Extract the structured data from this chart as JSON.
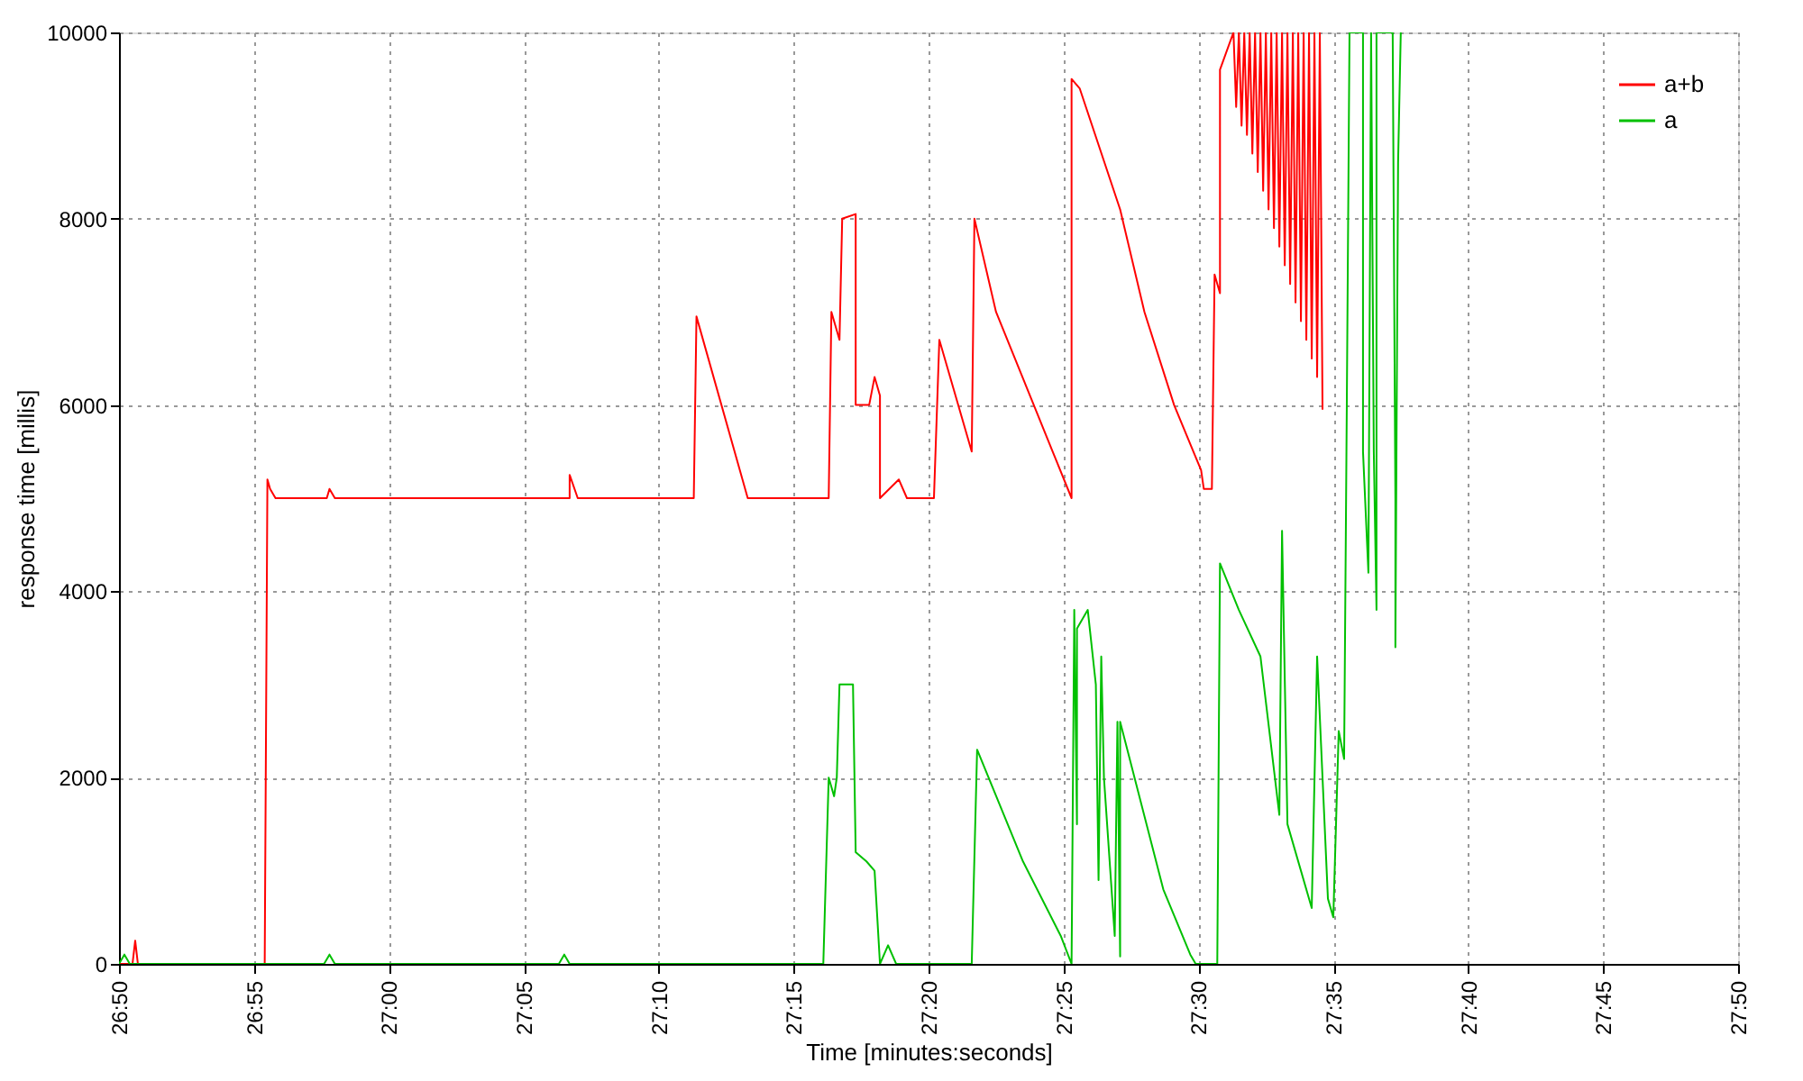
{
  "chart_data": {
    "type": "line",
    "xlabel": "Time [minutes:seconds]",
    "ylabel": "response time [millis]",
    "xlim": [
      1610,
      1670
    ],
    "ylim": [
      0,
      10000
    ],
    "xticks": [
      {
        "value": 1610,
        "label": "26:50"
      },
      {
        "value": 1615,
        "label": "26:55"
      },
      {
        "value": 1620,
        "label": "27:00"
      },
      {
        "value": 1625,
        "label": "27:05"
      },
      {
        "value": 1630,
        "label": "27:10"
      },
      {
        "value": 1635,
        "label": "27:15"
      },
      {
        "value": 1640,
        "label": "27:20"
      },
      {
        "value": 1645,
        "label": "27:25"
      },
      {
        "value": 1650,
        "label": "27:30"
      },
      {
        "value": 1655,
        "label": "27:35"
      },
      {
        "value": 1660,
        "label": "27:40"
      },
      {
        "value": 1665,
        "label": "27:45"
      },
      {
        "value": 1670,
        "label": "27:50"
      }
    ],
    "yticks": [
      0,
      2000,
      4000,
      6000,
      8000,
      10000
    ],
    "grid": true,
    "legend": "top right",
    "marker": "none",
    "line_style": "solid",
    "series": [
      {
        "name": "a+b",
        "color": "#ff0000",
        "x": [
          1610,
          1610.5,
          1610.6,
          1610.7,
          1615.4,
          1615.5,
          1615.6,
          1615.8,
          1617.7,
          1617.8,
          1618,
          1626.7,
          1626.7,
          1627,
          1631.3,
          1631.4,
          1633.3,
          1636.3,
          1636.4,
          1636.7,
          1636.8,
          1637.3,
          1637.3,
          1637.8,
          1638,
          1638.2,
          1638.2,
          1638.9,
          1639.2,
          1640.2,
          1640.4,
          1641.6,
          1641.7,
          1642.5,
          1644.6,
          1645.3,
          1645.3,
          1645.6,
          1647.1,
          1648,
          1649.1,
          1650.1,
          1650.2,
          1650.5,
          1650.6,
          1650.8,
          1650.8,
          1651.3,
          1651.4,
          1651.5,
          1651.6,
          1651.7,
          1651.8,
          1651.9,
          1652,
          1652.1,
          1652.2,
          1652.3,
          1652.4,
          1652.5,
          1652.6,
          1652.7,
          1652.8,
          1652.9,
          1653,
          1653.1,
          1653.2,
          1653.3,
          1653.4,
          1653.5,
          1653.6,
          1653.7,
          1653.8,
          1653.9,
          1654,
          1654.1,
          1654.2,
          1654.3,
          1654.4,
          1654.5,
          1654.6
        ],
        "values": [
          0,
          0,
          250,
          0,
          0,
          5200,
          5100,
          5000,
          5000,
          5100,
          5000,
          5000,
          5250,
          5000,
          5000,
          6950,
          5000,
          5000,
          7000,
          6700,
          8000,
          8050,
          6000,
          6000,
          6300,
          6100,
          5000,
          5200,
          5000,
          5000,
          6700,
          5500,
          8000,
          7000,
          5500,
          5000,
          9500,
          9400,
          8100,
          7000,
          6000,
          5300,
          5100,
          5100,
          7400,
          7200,
          9600,
          10000,
          9200,
          10000,
          9000,
          10000,
          8900,
          10000,
          8700,
          10000,
          8500,
          10000,
          8300,
          10000,
          8100,
          10000,
          7900,
          10000,
          7700,
          10000,
          7500,
          10000,
          7300,
          10000,
          7100,
          10000,
          6900,
          10000,
          6700,
          10000,
          6500,
          10000,
          6300,
          10000,
          5950
        ]
      },
      {
        "name": "a",
        "color": "#00c000",
        "x": [
          1610,
          1610.2,
          1610.4,
          1615,
          1617.6,
          1617.8,
          1618,
          1626.3,
          1626.5,
          1626.7,
          1636.1,
          1636.3,
          1636.5,
          1636.6,
          1636.7,
          1637.2,
          1637.3,
          1637.7,
          1638,
          1638.2,
          1638.5,
          1638.8,
          1641.6,
          1641.8,
          1643.5,
          1644.9,
          1645.3,
          1645.4,
          1645.5,
          1645.5,
          1645.9,
          1646.2,
          1646.3,
          1646.4,
          1646.5,
          1646.9,
          1647,
          1647.1,
          1647.1,
          1648.7,
          1649.7,
          1649.9,
          1650.7,
          1650.8,
          1651.5,
          1652.3,
          1653,
          1653.1,
          1653.3,
          1654.2,
          1654.4,
          1654.6,
          1654.8,
          1655,
          1655.2,
          1655.4,
          1655.5,
          1655.6,
          1656.1,
          1656.1,
          1656.3,
          1656.4,
          1656.5,
          1656.6,
          1656.6,
          1657.2,
          1657.3,
          1657.3,
          1657.4,
          1657.5
        ],
        "values": [
          0,
          100,
          0,
          0,
          0,
          100,
          0,
          0,
          100,
          0,
          0,
          2000,
          1800,
          2000,
          3000,
          3000,
          1200,
          1100,
          1000,
          0,
          200,
          0,
          0,
          2300,
          1100,
          300,
          0,
          3800,
          1500,
          3600,
          3800,
          3000,
          900,
          3300,
          2000,
          300,
          2600,
          80,
          2600,
          800,
          100,
          0,
          0,
          4300,
          3800,
          3300,
          1600,
          4650,
          1500,
          600,
          3300,
          2000,
          700,
          500,
          2500,
          2200,
          6000,
          10000,
          10000,
          5500,
          4200,
          10000,
          5500,
          3800,
          10000,
          10000,
          5000,
          3400,
          8600,
          10000
        ]
      }
    ]
  }
}
